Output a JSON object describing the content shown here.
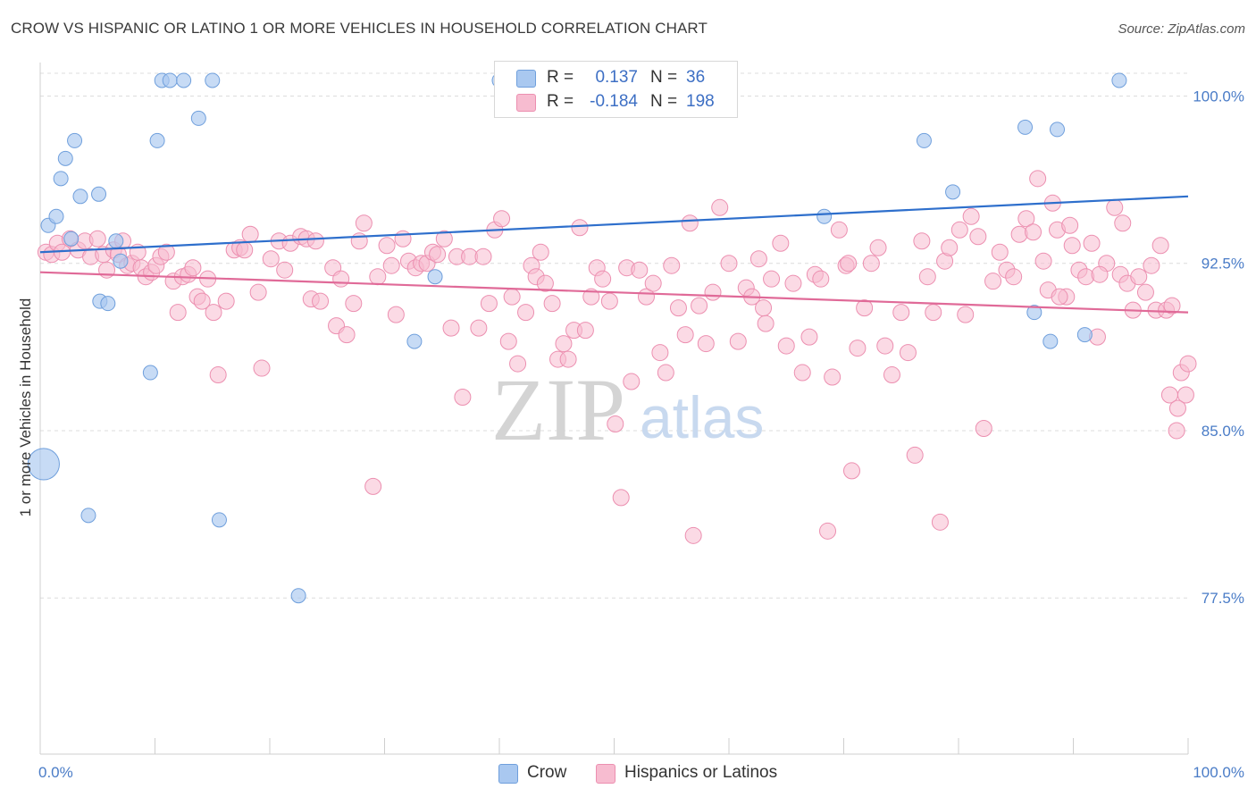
{
  "title": "CROW VS HISPANIC OR LATINO 1 OR MORE VEHICLES IN HOUSEHOLD CORRELATION CHART",
  "source": "Source: ZipAtlas.com",
  "watermark": {
    "zip": "ZIP",
    "atlas": "atlas"
  },
  "legend_top": {
    "rows": [
      {
        "r_label": "R =",
        "r_value": "0.137",
        "n_label": "N =",
        "n_value": "36",
        "color": "#a9c8f0",
        "stroke": "#6f9fdc"
      },
      {
        "r_label": "R =",
        "r_value": "-0.184",
        "n_label": "N =",
        "n_value": "198",
        "color": "#f7bcd0",
        "stroke": "#ec8fb0"
      }
    ]
  },
  "legend_bottom": {
    "items": [
      {
        "label": "Crow",
        "color": "#a9c8f0",
        "stroke": "#6f9fdc"
      },
      {
        "label": "Hispanics or Latinos",
        "color": "#f7bcd0",
        "stroke": "#ec8fb0"
      }
    ]
  },
  "chart_data": {
    "type": "scatter",
    "title": "CROW VS HISPANIC OR LATINO 1 OR MORE VEHICLES IN HOUSEHOLD CORRELATION CHART",
    "xlabel": "",
    "ylabel": "1 or more Vehicles in Household",
    "xlim": [
      0,
      100
    ],
    "ylim": [
      70.5,
      101.5
    ],
    "x_tick_labels": [
      "0.0%",
      "100.0%"
    ],
    "y_ticks": [
      100.0,
      92.5,
      85.0,
      77.5
    ],
    "y_tick_labels": [
      "100.0%",
      "92.5%",
      "85.0%",
      "77.5%"
    ],
    "grid": true,
    "legend_position": "top-center",
    "series": [
      {
        "name": "Crow",
        "color": "#a9c8f0",
        "stroke": "#6f9fdc",
        "line_color": "#2e6fcc",
        "trend": {
          "x": [
            0,
            100
          ],
          "y": [
            93.0,
            95.5
          ]
        },
        "points": [
          [
            0.7,
            94.2
          ],
          [
            1.4,
            94.6
          ],
          [
            1.8,
            96.3
          ],
          [
            2.2,
            97.2
          ],
          [
            2.7,
            93.6
          ],
          [
            3.0,
            98.0
          ],
          [
            3.5,
            95.5
          ],
          [
            4.2,
            81.2
          ],
          [
            5.1,
            95.6
          ],
          [
            5.2,
            90.8
          ],
          [
            5.9,
            90.7
          ],
          [
            6.6,
            93.5
          ],
          [
            7.0,
            92.6
          ],
          [
            9.6,
            87.6
          ],
          [
            10.2,
            98.0
          ],
          [
            10.6,
            100.7
          ],
          [
            11.3,
            100.7
          ],
          [
            12.5,
            100.7
          ],
          [
            13.8,
            99.0
          ],
          [
            15.0,
            100.7
          ],
          [
            15.6,
            81.0
          ],
          [
            22.5,
            77.6
          ],
          [
            32.6,
            89.0
          ],
          [
            34.4,
            91.9
          ],
          [
            40.0,
            100.7
          ],
          [
            56.5,
            100.7
          ],
          [
            68.3,
            94.6
          ],
          [
            77.0,
            98.0
          ],
          [
            79.5,
            95.7
          ],
          [
            85.8,
            98.6
          ],
          [
            86.6,
            90.3
          ],
          [
            88.0,
            89.0
          ],
          [
            88.6,
            98.5
          ],
          [
            91.0,
            89.3
          ],
          [
            94.0,
            100.7
          ],
          [
            0.3,
            83.5
          ]
        ],
        "point_sizes": [
          1,
          1,
          1,
          1,
          1,
          1,
          1,
          1,
          1,
          1,
          1,
          1,
          1,
          1,
          1,
          1,
          1,
          1,
          1,
          1,
          1,
          1,
          1,
          1,
          1,
          1,
          1,
          1,
          1,
          1,
          1,
          1,
          1,
          1,
          1,
          2.2
        ]
      },
      {
        "name": "Hispanics or Latinos",
        "color": "#f7bcd0",
        "stroke": "#ec8fb0",
        "line_color": "#e06a98",
        "trend": {
          "x": [
            0,
            100
          ],
          "y": [
            92.1,
            90.3
          ]
        },
        "points": [
          [
            0.5,
            93.0
          ],
          [
            1.0,
            92.9
          ],
          [
            1.5,
            93.4
          ],
          [
            1.9,
            93.0
          ],
          [
            2.6,
            93.6
          ],
          [
            3.3,
            93.1
          ],
          [
            3.9,
            93.5
          ],
          [
            4.4,
            92.8
          ],
          [
            5.0,
            93.6
          ],
          [
            5.5,
            92.9
          ],
          [
            5.8,
            92.2
          ],
          [
            6.4,
            93.1
          ],
          [
            6.8,
            92.9
          ],
          [
            7.2,
            93.5
          ],
          [
            7.6,
            92.4
          ],
          [
            8.0,
            92.5
          ],
          [
            8.5,
            93.0
          ],
          [
            8.8,
            92.3
          ],
          [
            9.2,
            91.9
          ],
          [
            9.7,
            92.1
          ],
          [
            10.1,
            92.4
          ],
          [
            10.5,
            92.8
          ],
          [
            11.0,
            93.0
          ],
          [
            11.6,
            91.7
          ],
          [
            12.0,
            90.3
          ],
          [
            12.4,
            91.9
          ],
          [
            12.9,
            92.0
          ],
          [
            13.3,
            92.3
          ],
          [
            13.7,
            91.0
          ],
          [
            14.1,
            90.8
          ],
          [
            14.6,
            91.8
          ],
          [
            15.1,
            90.3
          ],
          [
            15.5,
            87.5
          ],
          [
            16.2,
            90.8
          ],
          [
            16.9,
            93.1
          ],
          [
            17.4,
            93.2
          ],
          [
            17.8,
            93.1
          ],
          [
            18.3,
            93.8
          ],
          [
            19.0,
            91.2
          ],
          [
            19.3,
            87.8
          ],
          [
            20.1,
            92.7
          ],
          [
            20.8,
            93.5
          ],
          [
            21.3,
            92.2
          ],
          [
            21.8,
            93.4
          ],
          [
            22.7,
            93.7
          ],
          [
            23.2,
            93.6
          ],
          [
            23.6,
            90.9
          ],
          [
            24.0,
            93.5
          ],
          [
            24.4,
            90.8
          ],
          [
            25.5,
            92.3
          ],
          [
            25.8,
            89.7
          ],
          [
            26.2,
            91.8
          ],
          [
            26.7,
            89.3
          ],
          [
            27.3,
            90.7
          ],
          [
            27.8,
            93.5
          ],
          [
            28.2,
            94.3
          ],
          [
            29.0,
            82.5
          ],
          [
            29.4,
            91.9
          ],
          [
            30.2,
            93.3
          ],
          [
            30.6,
            92.4
          ],
          [
            31.0,
            90.2
          ],
          [
            31.6,
            93.6
          ],
          [
            32.1,
            92.6
          ],
          [
            32.7,
            92.3
          ],
          [
            33.2,
            92.5
          ],
          [
            33.7,
            92.5
          ],
          [
            34.2,
            93.0
          ],
          [
            34.6,
            92.9
          ],
          [
            35.2,
            93.6
          ],
          [
            35.8,
            89.6
          ],
          [
            36.3,
            92.8
          ],
          [
            36.8,
            86.5
          ],
          [
            37.4,
            92.8
          ],
          [
            38.2,
            89.6
          ],
          [
            38.6,
            92.8
          ],
          [
            39.1,
            90.7
          ],
          [
            39.6,
            94.0
          ],
          [
            40.2,
            94.5
          ],
          [
            40.8,
            89.0
          ],
          [
            41.1,
            91.0
          ],
          [
            41.6,
            88.0
          ],
          [
            42.3,
            90.3
          ],
          [
            42.8,
            92.4
          ],
          [
            43.2,
            91.9
          ],
          [
            43.6,
            93.0
          ],
          [
            44.0,
            91.6
          ],
          [
            44.6,
            90.7
          ],
          [
            45.1,
            88.2
          ],
          [
            45.6,
            88.9
          ],
          [
            46.0,
            88.2
          ],
          [
            46.5,
            89.5
          ],
          [
            47.0,
            94.1
          ],
          [
            47.5,
            89.5
          ],
          [
            48.0,
            91.0
          ],
          [
            48.5,
            92.3
          ],
          [
            49.0,
            91.8
          ],
          [
            49.6,
            90.8
          ],
          [
            50.1,
            85.3
          ],
          [
            50.6,
            82.0
          ],
          [
            51.1,
            92.3
          ],
          [
            51.5,
            87.2
          ],
          [
            52.2,
            92.2
          ],
          [
            52.8,
            91.0
          ],
          [
            53.4,
            91.6
          ],
          [
            54.0,
            88.5
          ],
          [
            54.5,
            87.6
          ],
          [
            55.0,
            92.4
          ],
          [
            55.6,
            90.5
          ],
          [
            56.2,
            89.3
          ],
          [
            56.6,
            94.3
          ],
          [
            56.9,
            80.3
          ],
          [
            57.4,
            90.6
          ],
          [
            58.0,
            88.9
          ],
          [
            58.6,
            91.2
          ],
          [
            59.2,
            95.0
          ],
          [
            60.0,
            92.5
          ],
          [
            60.8,
            89.0
          ],
          [
            61.5,
            91.4
          ],
          [
            62.0,
            91.0
          ],
          [
            62.6,
            92.7
          ],
          [
            63.2,
            89.8
          ],
          [
            63.7,
            91.8
          ],
          [
            64.5,
            93.4
          ],
          [
            65.0,
            88.8
          ],
          [
            65.6,
            91.6
          ],
          [
            66.4,
            87.6
          ],
          [
            67.0,
            89.2
          ],
          [
            67.5,
            92.0
          ],
          [
            68.0,
            91.8
          ],
          [
            68.6,
            80.5
          ],
          [
            69.0,
            87.4
          ],
          [
            69.6,
            94.0
          ],
          [
            70.2,
            92.4
          ],
          [
            70.7,
            83.2
          ],
          [
            71.2,
            88.7
          ],
          [
            71.8,
            90.5
          ],
          [
            72.4,
            92.5
          ],
          [
            73.0,
            93.2
          ],
          [
            73.6,
            88.8
          ],
          [
            74.2,
            87.5
          ],
          [
            75.0,
            90.3
          ],
          [
            75.6,
            88.5
          ],
          [
            76.2,
            83.9
          ],
          [
            76.8,
            93.5
          ],
          [
            77.3,
            91.9
          ],
          [
            77.8,
            90.3
          ],
          [
            78.4,
            80.9
          ],
          [
            78.8,
            92.6
          ],
          [
            79.2,
            93.2
          ],
          [
            80.1,
            94.0
          ],
          [
            80.6,
            90.2
          ],
          [
            81.1,
            94.6
          ],
          [
            81.7,
            93.7
          ],
          [
            82.2,
            85.1
          ],
          [
            83.0,
            91.7
          ],
          [
            83.6,
            93.0
          ],
          [
            84.2,
            92.2
          ],
          [
            84.8,
            91.9
          ],
          [
            85.3,
            93.8
          ],
          [
            85.9,
            94.5
          ],
          [
            86.5,
            93.9
          ],
          [
            86.9,
            96.3
          ],
          [
            87.4,
            92.6
          ],
          [
            87.8,
            91.3
          ],
          [
            88.2,
            95.2
          ],
          [
            88.6,
            94.0
          ],
          [
            89.4,
            91.0
          ],
          [
            89.9,
            93.3
          ],
          [
            90.5,
            92.2
          ],
          [
            91.1,
            91.9
          ],
          [
            91.6,
            93.4
          ],
          [
            92.1,
            89.2
          ],
          [
            92.9,
            92.5
          ],
          [
            93.6,
            95.0
          ],
          [
            94.1,
            92.0
          ],
          [
            94.7,
            91.6
          ],
          [
            95.2,
            90.4
          ],
          [
            95.7,
            91.9
          ],
          [
            96.3,
            91.2
          ],
          [
            96.8,
            92.4
          ],
          [
            97.2,
            90.4
          ],
          [
            97.6,
            93.3
          ],
          [
            98.1,
            90.4
          ],
          [
            98.6,
            90.6
          ],
          [
            99.0,
            85.0
          ],
          [
            99.4,
            87.6
          ],
          [
            99.8,
            86.6
          ],
          [
            100.0,
            88.0
          ],
          [
            98.4,
            86.6
          ],
          [
            99.1,
            86.0
          ],
          [
            92.3,
            92.0
          ],
          [
            89.7,
            94.2
          ],
          [
            70.4,
            92.5
          ],
          [
            63.0,
            90.5
          ],
          [
            88.8,
            91.0
          ],
          [
            94.3,
            94.3
          ]
        ]
      }
    ]
  }
}
